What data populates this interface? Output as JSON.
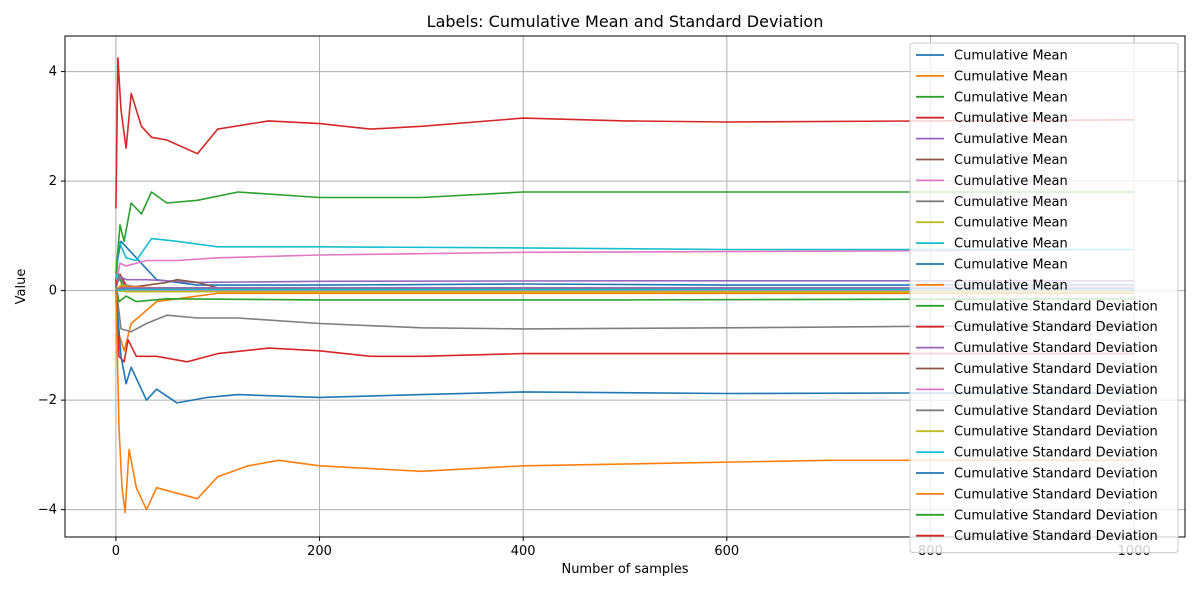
{
  "chart_data": {
    "type": "line",
    "title": "Labels: Cumulative Mean and Standard Deviation",
    "xlabel": "Number of samples",
    "ylabel": "Value",
    "xlim": [
      -50,
      1050
    ],
    "ylim": [
      -4.5,
      4.65
    ],
    "xticks": [
      0,
      200,
      400,
      600,
      800,
      1000
    ],
    "yticks": [
      -4,
      -2,
      0,
      2,
      4
    ],
    "grid": true,
    "legend_position": "right",
    "series": [
      {
        "name": "Cumulative Mean",
        "color": "#1f77b4",
        "points": [
          [
            0,
            0.2
          ],
          [
            2,
            0.6
          ],
          [
            5,
            0.9
          ],
          [
            10,
            0.8
          ],
          [
            20,
            0.6
          ],
          [
            40,
            0.2
          ],
          [
            80,
            0.1
          ],
          [
            200,
            0.1
          ],
          [
            400,
            0.12
          ],
          [
            600,
            0.1
          ],
          [
            800,
            0.1
          ],
          [
            1000,
            0.1
          ]
        ]
      },
      {
        "name": "Cumulative Mean",
        "color": "#ff7f0e",
        "points": [
          [
            0,
            -0.2
          ],
          [
            3,
            -0.8
          ],
          [
            8,
            -1.1
          ],
          [
            15,
            -0.6
          ],
          [
            40,
            -0.2
          ],
          [
            100,
            -0.05
          ],
          [
            300,
            -0.05
          ],
          [
            600,
            -0.05
          ],
          [
            1000,
            -0.05
          ]
        ]
      },
      {
        "name": "Cumulative Mean",
        "color": "#2ca02c",
        "points": [
          [
            0,
            0.05
          ],
          [
            3,
            0.3
          ],
          [
            6,
            0.1
          ],
          [
            20,
            0.05
          ],
          [
            100,
            0.03
          ],
          [
            500,
            0.03
          ],
          [
            1000,
            0.03
          ]
        ]
      },
      {
        "name": "Cumulative Mean",
        "color": "#d62728",
        "points": [
          [
            0,
            0.1
          ],
          [
            4,
            0.3
          ],
          [
            10,
            0.1
          ],
          [
            40,
            0.0
          ],
          [
            200,
            0.0
          ],
          [
            1000,
            0.0
          ]
        ]
      },
      {
        "name": "Cumulative Mean",
        "color": "#9467bd",
        "points": [
          [
            0,
            0.1
          ],
          [
            5,
            0.25
          ],
          [
            10,
            0.2
          ],
          [
            30,
            0.2
          ],
          [
            80,
            0.15
          ],
          [
            200,
            0.17
          ],
          [
            500,
            0.18
          ],
          [
            800,
            0.18
          ],
          [
            1000,
            0.18
          ]
        ]
      },
      {
        "name": "Cumulative Mean",
        "color": "#8c564b",
        "points": [
          [
            0,
            0.0
          ],
          [
            10,
            0.05
          ],
          [
            50,
            0.15
          ],
          [
            60,
            0.2
          ],
          [
            80,
            0.15
          ],
          [
            100,
            0.05
          ],
          [
            300,
            0.02
          ],
          [
            1000,
            0.02
          ]
        ]
      },
      {
        "name": "Cumulative Mean",
        "color": "#e377c2",
        "points": [
          [
            0,
            0.1
          ],
          [
            4,
            0.5
          ],
          [
            10,
            0.45
          ],
          [
            30,
            0.55
          ],
          [
            60,
            0.55
          ],
          [
            100,
            0.6
          ],
          [
            200,
            0.65
          ],
          [
            400,
            0.7
          ],
          [
            700,
            0.72
          ],
          [
            1000,
            0.75
          ]
        ]
      },
      {
        "name": "Cumulative Mean",
        "color": "#7f7f7f",
        "points": [
          [
            0,
            0.0
          ],
          [
            3,
            0.3
          ],
          [
            8,
            0.1
          ],
          [
            30,
            0.05
          ],
          [
            100,
            0.05
          ],
          [
            1000,
            0.05
          ]
        ]
      },
      {
        "name": "Cumulative Mean",
        "color": "#bcbd22",
        "points": [
          [
            0,
            0.0
          ],
          [
            5,
            0.1
          ],
          [
            20,
            0.05
          ],
          [
            100,
            0.02
          ],
          [
            1000,
            0.02
          ]
        ]
      },
      {
        "name": "Cumulative Mean",
        "color": "#17becf",
        "points": [
          [
            0,
            0.2
          ],
          [
            3,
            0.9
          ],
          [
            10,
            0.6
          ],
          [
            20,
            0.55
          ],
          [
            35,
            0.95
          ],
          [
            60,
            0.9
          ],
          [
            100,
            0.8
          ],
          [
            200,
            0.8
          ],
          [
            400,
            0.78
          ],
          [
            600,
            0.75
          ],
          [
            800,
            0.75
          ],
          [
            1000,
            0.75
          ]
        ]
      },
      {
        "name": "Cumulative Mean",
        "color": "#1f77b4",
        "points": [
          [
            0,
            0.0
          ],
          [
            5,
            0.05
          ],
          [
            50,
            0.03
          ],
          [
            1000,
            0.03
          ]
        ]
      },
      {
        "name": "Cumulative Mean",
        "color": "#ff7f0e",
        "points": [
          [
            0,
            0.0
          ],
          [
            5,
            0.08
          ],
          [
            50,
            0.04
          ],
          [
            1000,
            0.05
          ]
        ]
      },
      {
        "name": "Cumulative Standard Deviation",
        "color": "#2ca02c",
        "points": [
          [
            0,
            0.1
          ],
          [
            3,
            -0.2
          ],
          [
            10,
            -0.1
          ],
          [
            20,
            -0.2
          ],
          [
            50,
            -0.15
          ],
          [
            200,
            -0.17
          ],
          [
            500,
            -0.17
          ],
          [
            1000,
            -0.15
          ]
        ]
      },
      {
        "name": "Cumulative Standard Deviation",
        "color": "#d62728",
        "points": [
          [
            0,
            0.2
          ],
          [
            3,
            -1.2
          ],
          [
            8,
            -1.3
          ],
          [
            12,
            -0.9
          ],
          [
            20,
            -1.2
          ],
          [
            40,
            -1.2
          ],
          [
            70,
            -1.3
          ],
          [
            100,
            -1.15
          ],
          [
            150,
            -1.05
          ],
          [
            200,
            -1.1
          ],
          [
            250,
            -1.2
          ],
          [
            300,
            -1.2
          ],
          [
            400,
            -1.15
          ],
          [
            600,
            -1.15
          ],
          [
            800,
            -1.15
          ],
          [
            1000,
            -1.15
          ]
        ]
      },
      {
        "name": "Cumulative Standard Deviation",
        "color": "#9467bd",
        "points": [
          [
            0,
            0.0
          ],
          [
            5,
            0.05
          ],
          [
            100,
            0.05
          ],
          [
            1000,
            0.05
          ]
        ]
      },
      {
        "name": "Cumulative Standard Deviation",
        "color": "#8c564b",
        "points": [
          [
            0,
            0.0
          ],
          [
            10,
            0.02
          ],
          [
            200,
            0.02
          ],
          [
            1000,
            0.02
          ]
        ]
      },
      {
        "name": "Cumulative Standard Deviation",
        "color": "#e377c2",
        "points": [
          [
            0,
            0.0
          ],
          [
            10,
            0.01
          ],
          [
            1000,
            0.0
          ]
        ]
      },
      {
        "name": "Cumulative Standard Deviation",
        "color": "#7f7f7f",
        "points": [
          [
            0,
            0.1
          ],
          [
            5,
            -0.7
          ],
          [
            15,
            -0.75
          ],
          [
            30,
            -0.6
          ],
          [
            50,
            -0.45
          ],
          [
            80,
            -0.5
          ],
          [
            120,
            -0.5
          ],
          [
            200,
            -0.6
          ],
          [
            300,
            -0.68
          ],
          [
            400,
            -0.7
          ],
          [
            600,
            -0.68
          ],
          [
            800,
            -0.65
          ],
          [
            1000,
            -0.65
          ]
        ]
      },
      {
        "name": "Cumulative Standard Deviation",
        "color": "#bcbd22",
        "points": [
          [
            0,
            0.0
          ],
          [
            10,
            -0.02
          ],
          [
            1000,
            -0.02
          ]
        ]
      },
      {
        "name": "Cumulative Standard Deviation",
        "color": "#17becf",
        "points": [
          [
            0,
            0.0
          ],
          [
            10,
            0.02
          ],
          [
            1000,
            0.02
          ]
        ]
      },
      {
        "name": "Cumulative Standard Deviation",
        "color": "#1f77b4",
        "points": [
          [
            0,
            0.0
          ],
          [
            5,
            -1.2
          ],
          [
            10,
            -1.7
          ],
          [
            15,
            -1.4
          ],
          [
            30,
            -2.0
          ],
          [
            40,
            -1.8
          ],
          [
            60,
            -2.05
          ],
          [
            90,
            -1.95
          ],
          [
            120,
            -1.9
          ],
          [
            200,
            -1.95
          ],
          [
            300,
            -1.9
          ],
          [
            400,
            -1.85
          ],
          [
            600,
            -1.88
          ],
          [
            800,
            -1.87
          ],
          [
            1000,
            -1.87
          ]
        ]
      },
      {
        "name": "Cumulative Standard Deviation",
        "color": "#ff7f0e",
        "points": [
          [
            0,
            0.0
          ],
          [
            3,
            -2.5
          ],
          [
            6,
            -3.6
          ],
          [
            9,
            -4.05
          ],
          [
            13,
            -2.9
          ],
          [
            20,
            -3.6
          ],
          [
            30,
            -4.0
          ],
          [
            40,
            -3.6
          ],
          [
            60,
            -3.7
          ],
          [
            80,
            -3.8
          ],
          [
            100,
            -3.4
          ],
          [
            130,
            -3.2
          ],
          [
            160,
            -3.1
          ],
          [
            200,
            -3.2
          ],
          [
            300,
            -3.3
          ],
          [
            400,
            -3.2
          ],
          [
            550,
            -3.15
          ],
          [
            700,
            -3.1
          ],
          [
            800,
            -3.1
          ],
          [
            1000,
            -3.1
          ]
        ]
      },
      {
        "name": "Cumulative Standard Deviation",
        "color": "#2ca02c",
        "points": [
          [
            0,
            0.3
          ],
          [
            4,
            1.2
          ],
          [
            8,
            0.9
          ],
          [
            15,
            1.6
          ],
          [
            25,
            1.4
          ],
          [
            35,
            1.8
          ],
          [
            50,
            1.6
          ],
          [
            80,
            1.65
          ],
          [
            120,
            1.8
          ],
          [
            200,
            1.7
          ],
          [
            300,
            1.7
          ],
          [
            400,
            1.8
          ],
          [
            600,
            1.8
          ],
          [
            800,
            1.8
          ],
          [
            1000,
            1.8
          ]
        ]
      },
      {
        "name": "Cumulative Standard Deviation",
        "color": "#d62728",
        "points": [
          [
            0,
            1.5
          ],
          [
            2,
            4.25
          ],
          [
            5,
            3.3
          ],
          [
            10,
            2.6
          ],
          [
            15,
            3.6
          ],
          [
            25,
            3.0
          ],
          [
            35,
            2.8
          ],
          [
            50,
            2.75
          ],
          [
            80,
            2.5
          ],
          [
            100,
            2.95
          ],
          [
            150,
            3.1
          ],
          [
            200,
            3.05
          ],
          [
            250,
            2.95
          ],
          [
            300,
            3.0
          ],
          [
            400,
            3.15
          ],
          [
            500,
            3.1
          ],
          [
            600,
            3.08
          ],
          [
            800,
            3.1
          ],
          [
            1000,
            3.12
          ]
        ]
      }
    ]
  }
}
